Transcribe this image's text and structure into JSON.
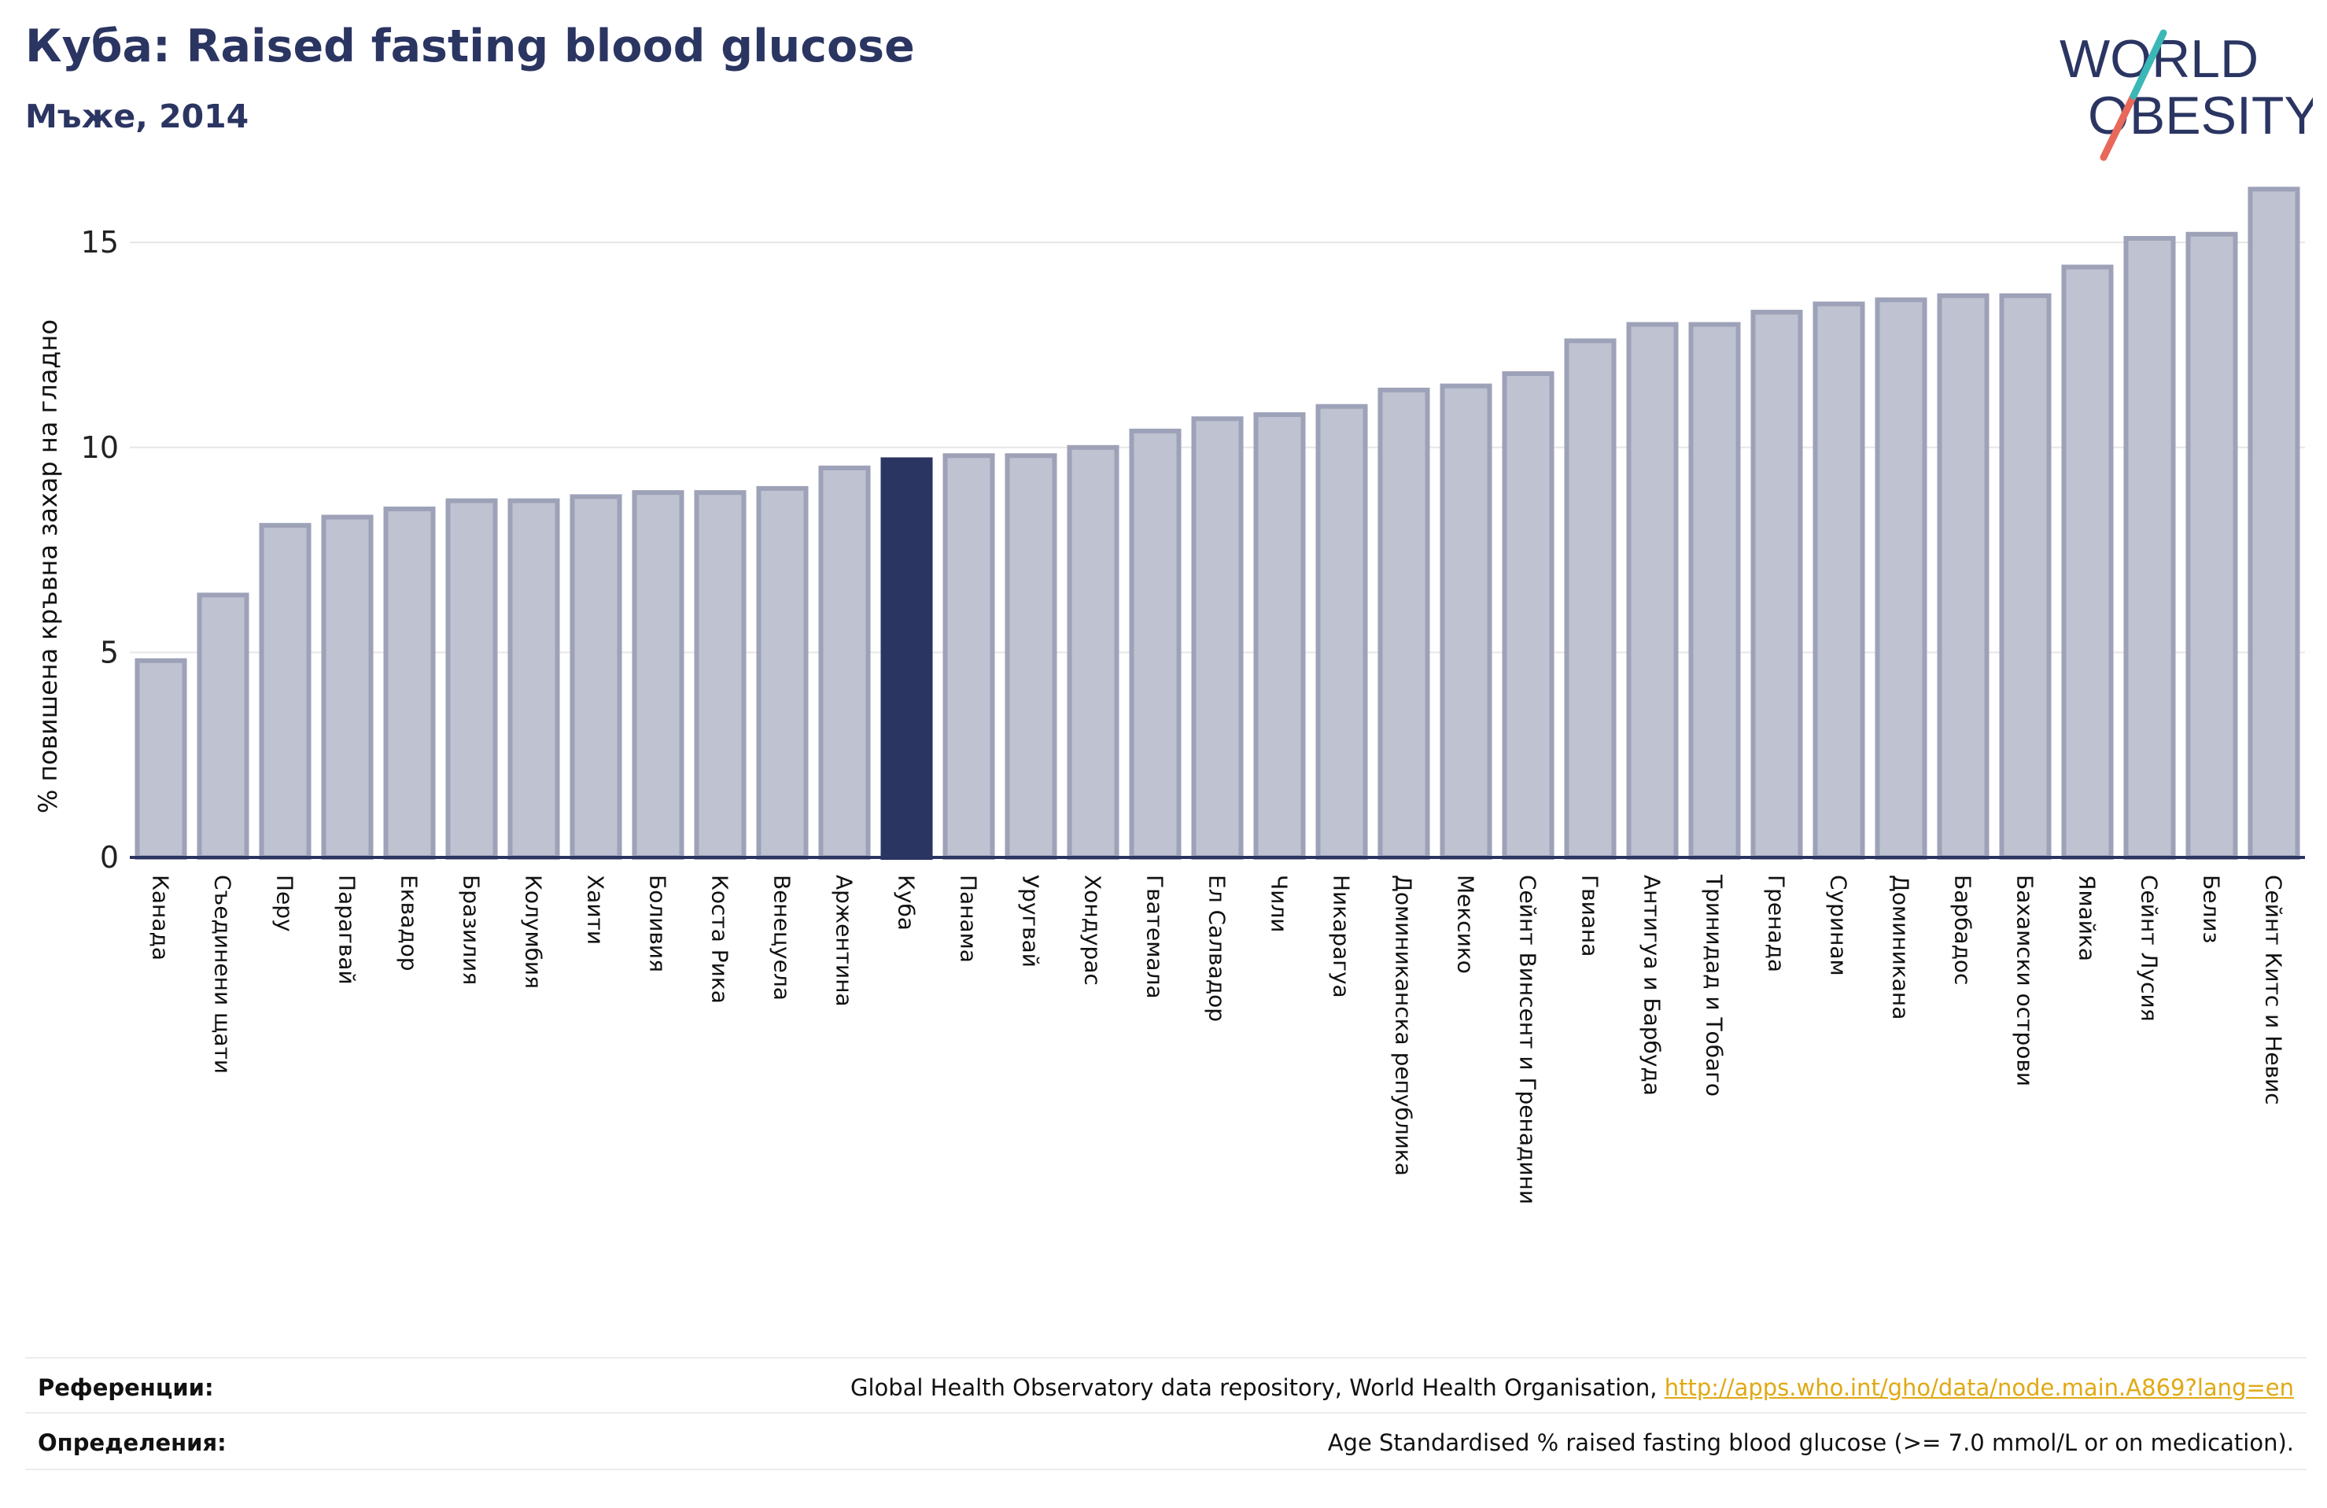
{
  "header": {
    "title": "Куба: Raised fasting blood glucose",
    "subtitle": "Мъже, 2014"
  },
  "logo": {
    "line1": "WORLD",
    "line2": "OBESITY",
    "colors": {
      "text": "#2b3562",
      "slash_red": "#e8685a",
      "slash_teal": "#3bb7b6"
    }
  },
  "colors": {
    "bar": "#bfc2d1",
    "bar_stroke": "#9ea2b8",
    "highlight": "#2b3562",
    "axis": "#2b3562",
    "grid": "#e6e6e6"
  },
  "chart_data": {
    "type": "bar",
    "ylabel": "% повишена кръвна захар на гладно",
    "ylim": [
      0,
      16.5
    ],
    "yticks": [
      0,
      5,
      10,
      15
    ],
    "highlight": "Куба",
    "categories": [
      "Канада",
      "Съединени щати",
      "Перу",
      "Парагвай",
      "Еквадор",
      "Бразилия",
      "Колумбия",
      "Хаити",
      "Боливия",
      "Коста Рика",
      "Венецуела",
      "Аржентина",
      "Куба",
      "Панама",
      "Уругвай",
      "Хондурас",
      "Гватемала",
      "Ел Салвадор",
      "Чили",
      "Никарагуа",
      "Доминиканска република",
      "Мексико",
      "Сейнт Винсент и Гренадини",
      "Гвиана",
      "Антигуа и Барбуда",
      "Тринидад и Тобаго",
      "Гренада",
      "Суринам",
      "Доминикана",
      "Барбадос",
      "Бахамски острови",
      "Ямайка",
      "Сейнт Лусия",
      "Белиз",
      "Сейнт Китс и Невис"
    ],
    "values": [
      4.8,
      6.4,
      8.1,
      8.3,
      8.5,
      8.7,
      8.7,
      8.8,
      8.9,
      8.9,
      9.0,
      9.5,
      9.7,
      9.8,
      9.8,
      10.0,
      10.4,
      10.7,
      10.8,
      11.0,
      11.4,
      11.5,
      11.8,
      12.6,
      13.0,
      13.0,
      13.3,
      13.5,
      13.6,
      13.7,
      13.7,
      14.4,
      15.1,
      15.2,
      16.3
    ]
  },
  "references": {
    "ref_label": "Референции:",
    "ref_text": "Global Health Observatory data repository, World Health Organisation, ",
    "ref_link": "http://apps.who.int/gho/data/node.main.A869?lang=en",
    "def_label": "Определения:",
    "def_text": "Age Standardised % raised fasting blood glucose (>= 7.0 mmol/L or on medication)."
  }
}
